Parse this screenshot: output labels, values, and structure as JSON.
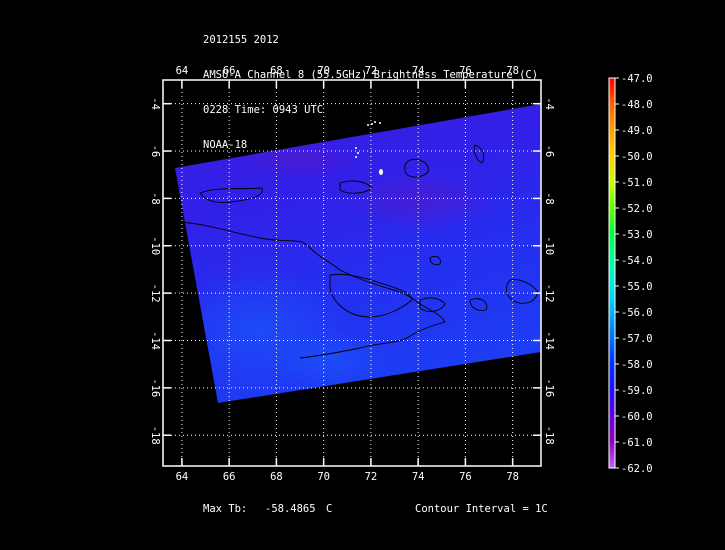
{
  "header": {
    "line1": "2012155 2012",
    "line2": "AMSU-A Channel 8 (55.5GHz) Brightness Temperature (C)",
    "line3": "0228 Time: 0943 UTC",
    "line4": "NOAA-18"
  },
  "footer": {
    "max_tb_label": "Max Tb:",
    "max_tb_value": "-58.4865",
    "max_tb_unit": "C",
    "contour_interval": "Contour Interval = 1C"
  },
  "map": {
    "lon_ticks": [
      "64",
      "66",
      "68",
      "70",
      "72",
      "74",
      "76",
      "78"
    ],
    "lat_ticks": [
      "-4",
      "-6",
      "-8",
      "-10",
      "-12",
      "-14",
      "-16",
      "-18"
    ],
    "lon_range": [
      63.2,
      79.2
    ],
    "lat_range": [
      -3.0,
      -19.3
    ],
    "swath_color": "#2a1ff0",
    "background": "#000000",
    "grid": "dotted white"
  },
  "colorbar": {
    "labels": [
      "-47.0",
      "-48.0",
      "-49.0",
      "-50.0",
      "-51.0",
      "-52.0",
      "-53.0",
      "-54.0",
      "-55.0",
      "-56.0",
      "-57.0",
      "-58.0",
      "-59.0",
      "-60.0",
      "-61.0",
      "-62.0"
    ],
    "colors": [
      "#ff0000",
      "#ff6000",
      "#ffa000",
      "#ffd000",
      "#c8ff00",
      "#60ff00",
      "#00ff40",
      "#00ffa0",
      "#00e8e0",
      "#00b0ff",
      "#0070ff",
      "#0030ff",
      "#2010ff",
      "#6000e0",
      "#9000c0",
      "#c060ff"
    ]
  }
}
